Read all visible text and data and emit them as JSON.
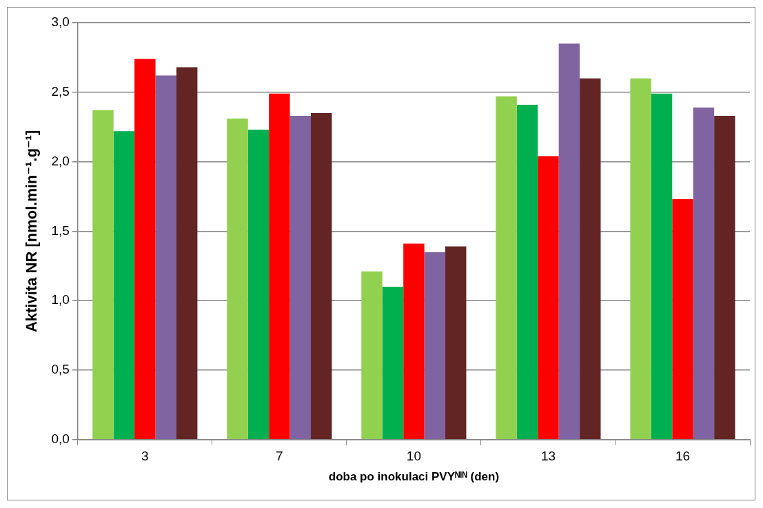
{
  "chart_data": {
    "type": "bar",
    "xlabel": "doba po inokulaci PVYᴺᴵᴺ (den)",
    "ylabel": "Aktivita NR [nmol.min⁻¹.g⁻¹]",
    "categories": [
      "3",
      "7",
      "10",
      "13",
      "16"
    ],
    "series": [
      {
        "color": "#92d050",
        "values": [
          2.37,
          2.31,
          1.21,
          2.47,
          2.6
        ]
      },
      {
        "color": "#00b050",
        "values": [
          2.22,
          2.23,
          1.1,
          2.41,
          2.49
        ]
      },
      {
        "color": "#ff0000",
        "values": [
          2.74,
          2.49,
          1.41,
          2.04,
          1.73
        ]
      },
      {
        "color": "#8064a2",
        "values": [
          2.62,
          2.33,
          1.35,
          2.85,
          2.39
        ]
      },
      {
        "color": "#632523",
        "values": [
          2.68,
          2.35,
          1.39,
          2.6,
          2.33
        ]
      }
    ],
    "ylim": [
      0,
      3
    ],
    "yticks": [
      {
        "value": 0,
        "label": "0,0"
      },
      {
        "value": 0.5,
        "label": "0,5"
      },
      {
        "value": 1,
        "label": "1,0"
      },
      {
        "value": 1.5,
        "label": "1,5"
      },
      {
        "value": 2,
        "label": "2,0"
      },
      {
        "value": 2.5,
        "label": "2,5"
      },
      {
        "value": 3,
        "label": "3,0"
      }
    ],
    "grid": "y"
  }
}
